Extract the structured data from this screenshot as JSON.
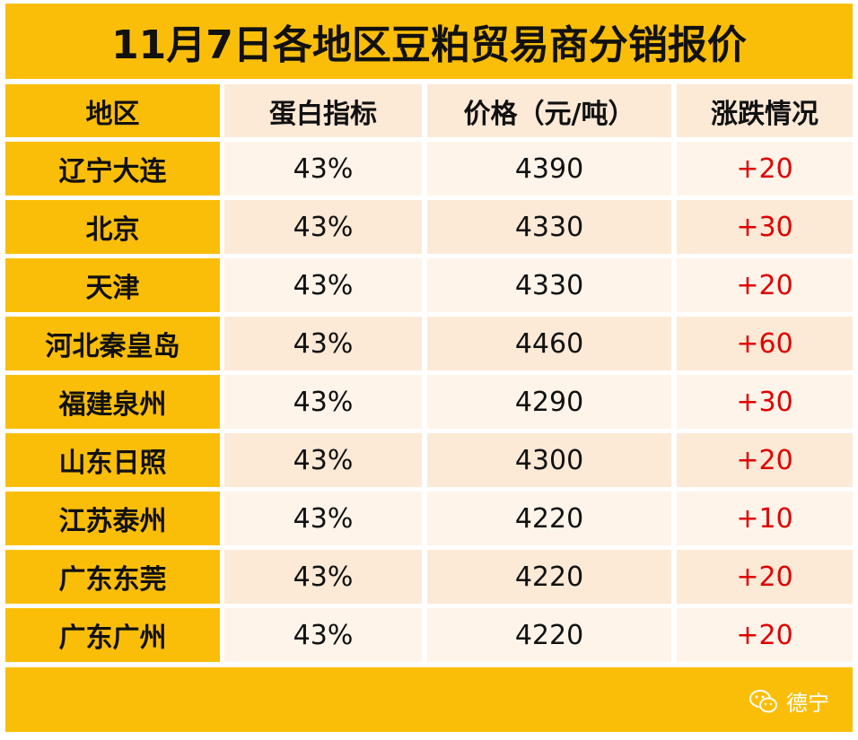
{
  "header": {
    "title": "11月7日各地区豆粕贸易商分销报价"
  },
  "table": {
    "columns": [
      "地区",
      "蛋白指标",
      "价格（元/吨）",
      "涨跌情况"
    ],
    "rows": [
      [
        "辽宁大连",
        "43%",
        "4390",
        "+20"
      ],
      [
        "北京",
        "43%",
        "4330",
        "+30"
      ],
      [
        "天津",
        "43%",
        "4330",
        "+20"
      ],
      [
        "河北秦皇岛",
        "43%",
        "4460",
        "+60"
      ],
      [
        "福建泉州",
        "43%",
        "4290",
        "+30"
      ],
      [
        "山东日照",
        "43%",
        "4300",
        "+20"
      ],
      [
        "江苏泰州",
        "43%",
        "4220",
        "+10"
      ],
      [
        "广东东莞",
        "43%",
        "4220",
        "+20"
      ],
      [
        "广东广州",
        "43%",
        "4220",
        "+20"
      ]
    ]
  },
  "footer": {
    "brand": "德宁"
  }
}
